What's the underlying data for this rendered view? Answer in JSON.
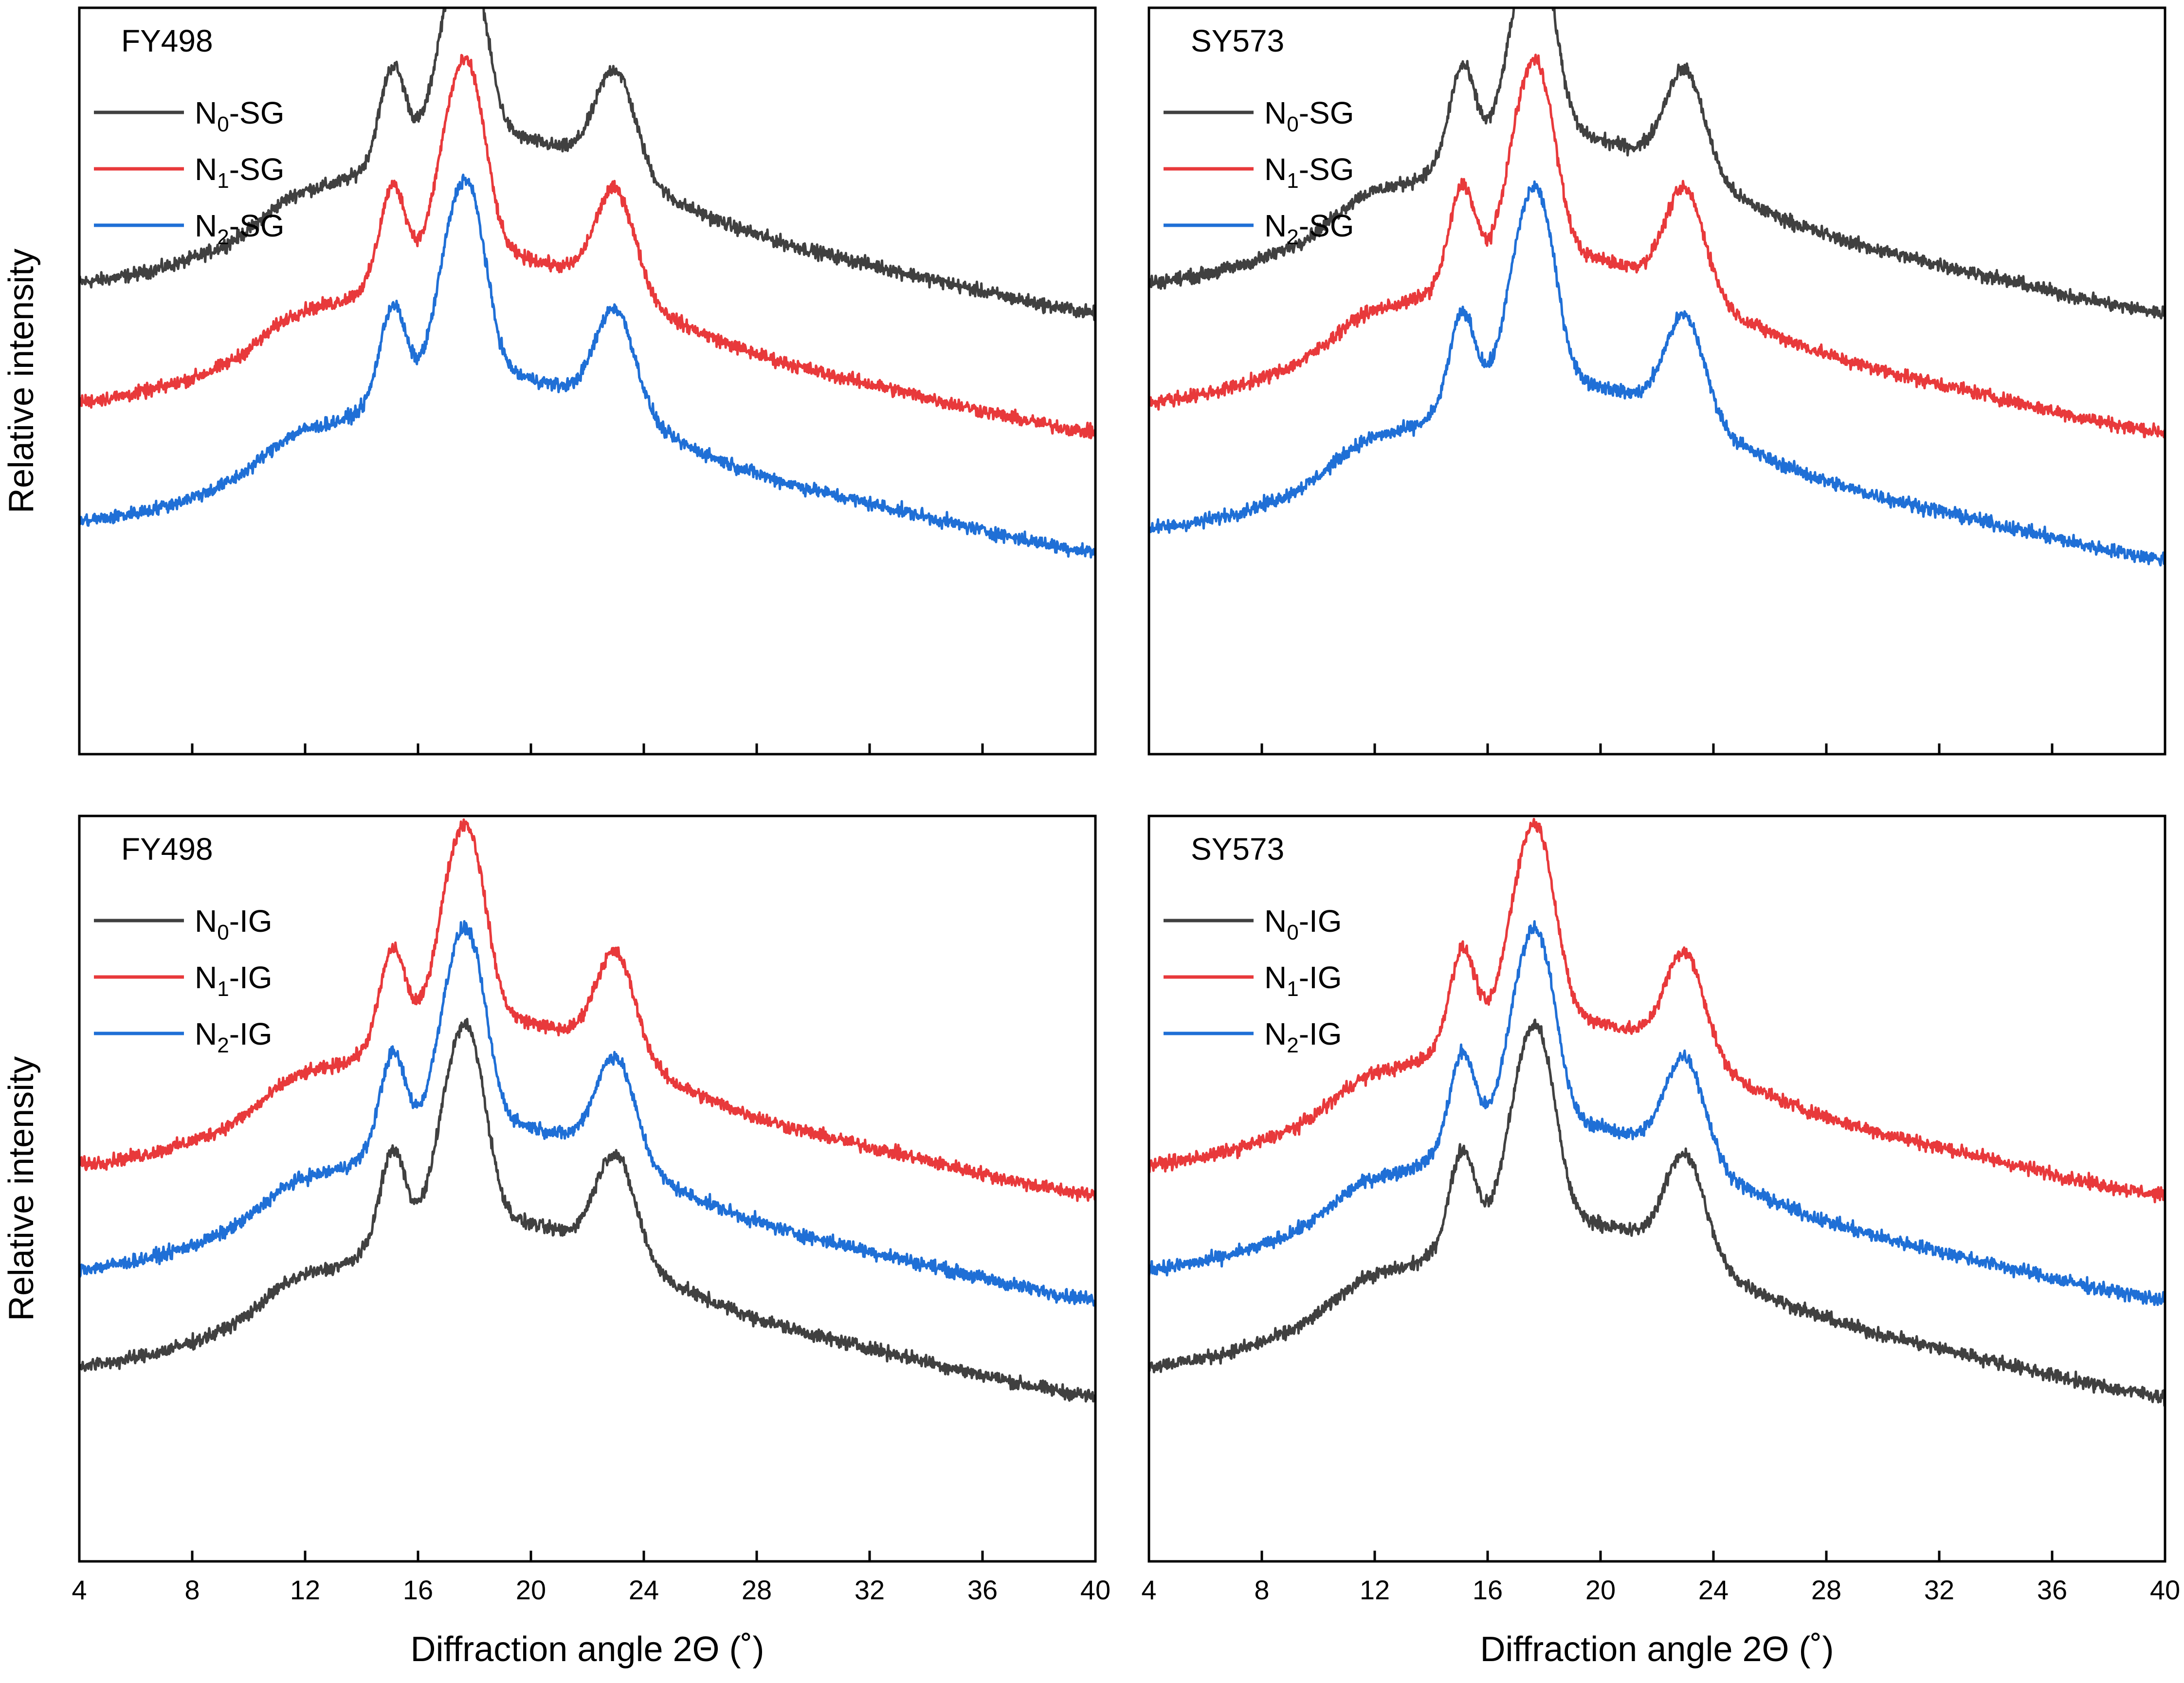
{
  "figure": {
    "x_axis_label": "Diffraction angle 2Θ (˚)",
    "y_axis_label": "Relative intensity"
  },
  "colors": {
    "N0": "#404040",
    "N1": "#e8393b",
    "N2": "#1f6fd6"
  },
  "chart_data": [
    {
      "type": "line",
      "panel": "top-left",
      "title": "FY498",
      "xlabel": "",
      "ylabel": "Relative intensity",
      "xlim": [
        4,
        40
      ],
      "ylim": [
        0,
        10
      ],
      "x_ticks": [
        4,
        8,
        12,
        16,
        20,
        24,
        28,
        32,
        36,
        40
      ],
      "show_tick_labels": false,
      "legend": "top-left",
      "series": [
        {
          "key": "N0",
          "name_main": "N",
          "name_sub": "0",
          "name_suffix": "-SG",
          "offset": 6.2
        },
        {
          "key": "N1",
          "name_main": "N",
          "name_sub": "1",
          "name_suffix": "-SG",
          "offset": 4.6
        },
        {
          "key": "N2",
          "name_main": "N",
          "name_sub": "2",
          "name_suffix": "-SG",
          "offset": 3.0
        }
      ]
    },
    {
      "type": "line",
      "panel": "top-right",
      "title": "SY573",
      "xlabel": "",
      "ylabel": "",
      "xlim": [
        4,
        40
      ],
      "ylim": [
        0,
        10
      ],
      "x_ticks": [
        4,
        8,
        12,
        16,
        20,
        24,
        28,
        32,
        36,
        40
      ],
      "show_tick_labels": false,
      "legend": "top-left",
      "series": [
        {
          "key": "N0",
          "name_main": "N",
          "name_sub": "0",
          "name_suffix": "-SG",
          "offset": 6.2
        },
        {
          "key": "N1",
          "name_main": "N",
          "name_sub": "1",
          "name_suffix": "-SG",
          "offset": 4.6
        },
        {
          "key": "N2",
          "name_main": "N",
          "name_sub": "2",
          "name_suffix": "-SG",
          "offset": 2.9
        }
      ]
    },
    {
      "type": "line",
      "panel": "bottom-left",
      "title": "FY498",
      "xlabel": "Diffraction angle 2Θ (˚)",
      "ylabel": "Relative intensity",
      "xlim": [
        4,
        40
      ],
      "ylim": [
        0,
        10
      ],
      "x_ticks": [
        4,
        8,
        12,
        16,
        20,
        24,
        28,
        32,
        36,
        40
      ],
      "show_tick_labels": true,
      "legend": "top-left",
      "series": [
        {
          "key": "N0",
          "name_main": "N",
          "name_sub": "0",
          "name_suffix": "-IG",
          "offset": 2.5
        },
        {
          "key": "N1",
          "name_main": "N",
          "name_sub": "1",
          "name_suffix": "-IG",
          "offset": 5.2
        },
        {
          "key": "N2",
          "name_main": "N",
          "name_sub": "2",
          "name_suffix": "-IG",
          "offset": 3.8
        }
      ]
    },
    {
      "type": "line",
      "panel": "bottom-right",
      "title": "SY573",
      "xlabel": "Diffraction angle 2Θ (˚)",
      "ylabel": "",
      "xlim": [
        4,
        40
      ],
      "ylim": [
        0,
        10
      ],
      "x_ticks": [
        4,
        8,
        12,
        16,
        20,
        24,
        28,
        32,
        36,
        40
      ],
      "show_tick_labels": true,
      "legend": "top-left",
      "series": [
        {
          "key": "N0",
          "name_main": "N",
          "name_sub": "0",
          "name_suffix": "-IG",
          "offset": 2.5
        },
        {
          "key": "N1",
          "name_main": "N",
          "name_sub": "1",
          "name_suffix": "-IG",
          "offset": 5.2
        },
        {
          "key": "N2",
          "name_main": "N",
          "name_sub": "2",
          "name_suffix": "-IG",
          "offset": 3.8
        }
      ]
    }
  ]
}
